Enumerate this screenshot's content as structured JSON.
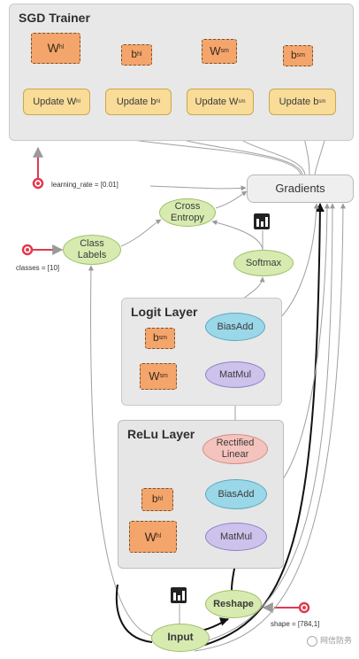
{
  "panels": {
    "sgd": "SGD Trainer",
    "logit": "Logit Layer",
    "relu": "ReLu Layer"
  },
  "vars": {
    "w_hl": {
      "main": "W",
      "sub": "hl"
    },
    "b_hl": {
      "main": "b",
      "sub": "hl"
    },
    "w_sm": {
      "main": "W",
      "sub": "sm"
    },
    "b_sm": {
      "main": "b",
      "sub": "sm"
    },
    "logit_b": {
      "main": "b",
      "sub": "sm"
    },
    "logit_w": {
      "main": "W",
      "sub": "sm"
    },
    "relu_b": {
      "main": "b",
      "sub": "hl"
    },
    "relu_w": {
      "main": "W",
      "sub": "hl"
    }
  },
  "updates": {
    "u1": {
      "main": "Update W",
      "sub": "hl"
    },
    "u2": {
      "main": "Update b",
      "sub": "hl"
    },
    "u3": {
      "main": "Update W",
      "sub": "sm"
    },
    "u4": {
      "main": "Update b",
      "sub": "sm"
    }
  },
  "ops": {
    "gradients": "Gradients",
    "cross_entropy_1": "Cross",
    "cross_entropy_2": "Entropy",
    "class_labels_1": "Class",
    "class_labels_2": "Labels",
    "softmax": "Softmax",
    "biasadd_logit": "BiasAdd",
    "matmul_logit": "MatMul",
    "rectified_1": "Rectified",
    "rectified_2": "Linear",
    "biasadd_relu": "BiasAdd",
    "matmul_relu": "MatMul",
    "reshape": "Reshape",
    "input": "Input"
  },
  "params": {
    "learning_rate": "learning_rate = [0.01]",
    "classes": "classes = [10]",
    "shape": "shape = [784,1]"
  },
  "watermark": "网信防务",
  "colors": {
    "variable": "#f3a56b",
    "update": "#f8dc97",
    "green_op": "#d7ebb0",
    "blue_op": "#9ad7e8",
    "purple_op": "#cdc2ec",
    "pink_op": "#f5c3bd",
    "param": "#e03a4e"
  }
}
